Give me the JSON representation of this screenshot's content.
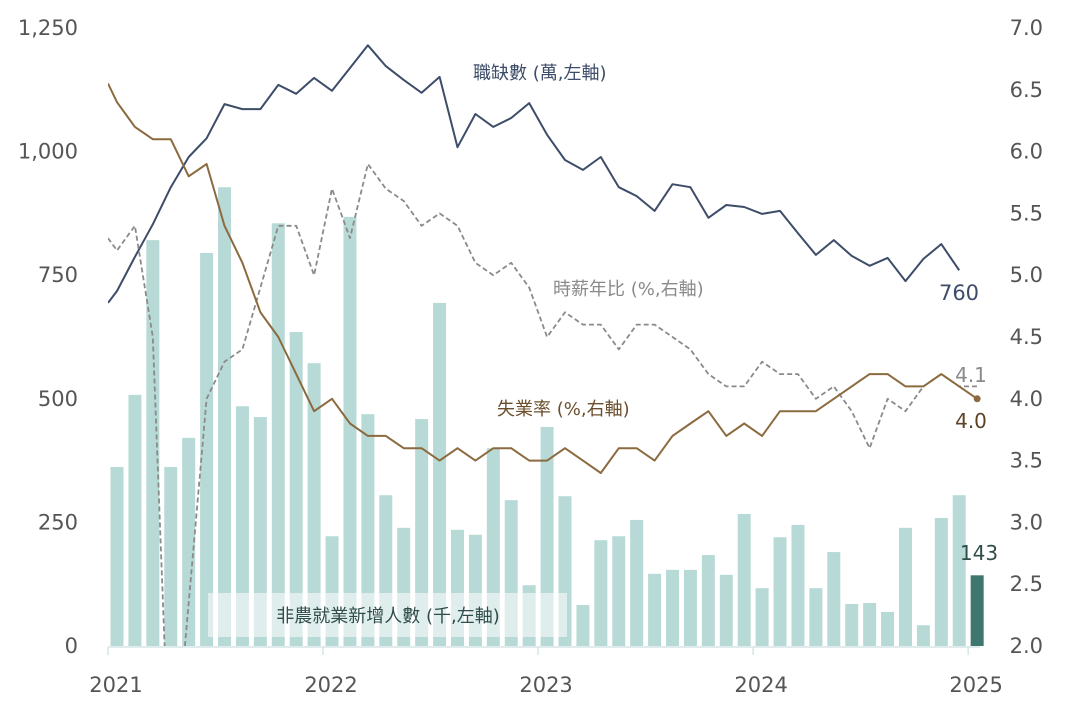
{
  "chart_data": {
    "type": "bar+line",
    "months_start": "2021-01",
    "x_tick_labels": [
      "2021",
      "2022",
      "2023",
      "2024",
      "2025"
    ],
    "left_axis": {
      "ylim": [
        0,
        1250
      ],
      "ticks": [
        "0",
        "250",
        "500",
        "750",
        "1,000",
        "1,250"
      ],
      "tick_values": [
        0,
        250,
        500,
        750,
        1000,
        1250
      ]
    },
    "right_axis": {
      "ylim": [
        2.0,
        7.0
      ],
      "ticks": [
        "2.0",
        "2.5",
        "3.0",
        "3.5",
        "4.0",
        "4.5",
        "5.0",
        "5.5",
        "6.0",
        "6.5",
        "7.0"
      ],
      "tick_values": [
        2.0,
        2.5,
        3.0,
        3.5,
        4.0,
        4.5,
        5.0,
        5.5,
        6.0,
        6.5,
        7.0
      ]
    },
    "series": [
      {
        "name": "非農就業新增人數 (千,左軸)",
        "kind": "bar",
        "axis": "left",
        "color": "#b8dad7",
        "highlight_color": "#3f7670",
        "values": [
          362,
          508,
          821,
          362,
          421,
          795,
          928,
          485,
          463,
          855,
          635,
          572,
          222,
          868,
          469,
          305,
          239,
          459,
          694,
          235,
          225,
          400,
          295,
          123,
          443,
          303,
          83,
          214,
          222,
          255,
          146,
          154,
          154,
          184,
          144,
          267,
          117,
          220,
          245,
          117,
          190,
          85,
          87,
          69,
          239,
          42,
          259,
          305,
          143
        ],
        "end_label": "143"
      },
      {
        "name": "職缺數 (萬,左軸)",
        "kind": "line",
        "axis": "left",
        "color": "#3d4d69",
        "start_offset_months": -1,
        "values": [
          670,
          718,
          787,
          853,
          928,
          989,
          1027,
          1096,
          1086,
          1086,
          1135,
          1117,
          1149,
          1123,
          1169,
          1215,
          1173,
          1145,
          1119,
          1151,
          1009,
          1076,
          1050,
          1068,
          1098,
          1034,
          983,
          963,
          989,
          928,
          910,
          880,
          934,
          928,
          866,
          892,
          888,
          874,
          880,
          835,
          791,
          821,
          789,
          769,
          785,
          738,
          783,
          813,
          760
        ],
        "end_label": "760"
      },
      {
        "name": "時薪年比 (%,右軸)",
        "kind": "line",
        "axis": "right",
        "color": "#8a8a8a",
        "dashed": true,
        "start_offset_months": -1,
        "values": [
          5.4,
          5.2,
          5.4,
          4.5,
          0.7,
          2.35,
          4.0,
          4.3,
          4.4,
          4.9,
          5.4,
          5.4,
          5.0,
          5.7,
          5.3,
          5.9,
          5.7,
          5.6,
          5.4,
          5.5,
          5.4,
          5.1,
          5.0,
          5.1,
          4.9,
          4.5,
          4.7,
          4.6,
          4.6,
          4.4,
          4.6,
          4.6,
          4.5,
          4.4,
          4.2,
          4.1,
          4.1,
          4.3,
          4.2,
          4.2,
          4.0,
          4.1,
          3.9,
          3.6,
          4.0,
          3.9,
          4.1,
          4.2,
          4.1,
          4.1
        ],
        "end_label": "4.1"
      },
      {
        "name": "失業率 (%,右軸)",
        "kind": "line",
        "axis": "right",
        "color": "#8b6a3f",
        "start_offset_months": -1,
        "values": [
          6.7,
          6.4,
          6.2,
          6.1,
          6.1,
          5.8,
          5.9,
          5.4,
          5.1,
          4.7,
          4.5,
          4.2,
          3.9,
          4.0,
          3.8,
          3.7,
          3.7,
          3.6,
          3.6,
          3.5,
          3.6,
          3.5,
          3.6,
          3.6,
          3.5,
          3.5,
          3.6,
          3.5,
          3.4,
          3.6,
          3.6,
          3.5,
          3.7,
          3.8,
          3.9,
          3.7,
          3.8,
          3.7,
          3.9,
          3.9,
          3.9,
          4.0,
          4.1,
          4.2,
          4.2,
          4.1,
          4.1,
          4.2,
          4.1,
          4.0
        ],
        "end_label": "4.0"
      }
    ],
    "legend": "inline labels",
    "grid": false
  }
}
